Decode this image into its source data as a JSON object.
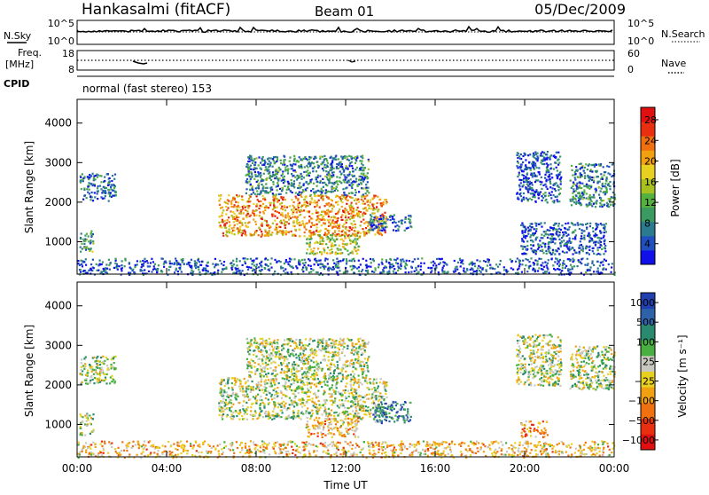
{
  "header": {
    "station": "Hankasalmi (fitACF)",
    "beam": "Beam 01",
    "date": "05/Dec/2009"
  },
  "top_panels": {
    "nsky_label": "N.Sky",
    "nsearch_label": "N.Search",
    "freq_label": "Freq.",
    "freq_unit": "[MHz]",
    "nave_label": "Nave",
    "cpid_label": "CPID",
    "cpid_value": "normal (fast stereo) 153",
    "noise_ticks_left": [
      "10^5",
      "10^0"
    ],
    "noise_ticks_right": [
      "10^5",
      "10^0"
    ],
    "freq_ticks_left": [
      "18",
      "8"
    ],
    "nave_ticks_right": [
      "60",
      "0"
    ]
  },
  "chart_data": [
    {
      "type": "heatmap",
      "xlabel": "",
      "ylabel": "Slant Range [km]",
      "xlim": [
        0,
        24
      ],
      "ylim": [
        180,
        4600
      ],
      "yticks": [
        "1000",
        "2000",
        "3000",
        "4000"
      ],
      "colorbar": {
        "label": "Power [dB]",
        "ticks": [
          "4",
          "8",
          "12",
          "16",
          "20",
          "24",
          "28"
        ],
        "colors": [
          "#1010e8",
          "#2050c0",
          "#2a7a90",
          "#3a9a60",
          "#55b040",
          "#a8c020",
          "#e8d020",
          "#f0a010",
          "#f07010",
          "#e83010",
          "#e01010"
        ]
      },
      "echo_regions": [
        {
          "t0": 0.1,
          "t1": 1.7,
          "r0": 2050,
          "r1": 2750,
          "level": 0.2
        },
        {
          "t0": 0.1,
          "t1": 0.7,
          "r0": 750,
          "r1": 1300,
          "level": 0.35
        },
        {
          "t0": 6.3,
          "t1": 13.8,
          "r0": 1150,
          "r1": 2200,
          "level": 0.7
        },
        {
          "t0": 7.5,
          "t1": 13.0,
          "r0": 2200,
          "r1": 3200,
          "level": 0.25
        },
        {
          "t0": 13.0,
          "t1": 14.9,
          "r0": 1300,
          "r1": 1700,
          "level": 0.2
        },
        {
          "t0": 10.2,
          "t1": 12.6,
          "r0": 700,
          "r1": 1200,
          "level": 0.5
        },
        {
          "t0": 19.6,
          "t1": 21.6,
          "r0": 2000,
          "r1": 3300,
          "level": 0.15
        },
        {
          "t0": 22.0,
          "t1": 24.0,
          "r0": 1900,
          "r1": 3000,
          "level": 0.25
        },
        {
          "t0": 19.8,
          "t1": 23.6,
          "r0": 700,
          "r1": 1500,
          "level": 0.15
        },
        {
          "t0": 0.0,
          "t1": 24.0,
          "r0": 180,
          "r1": 600,
          "level": 0.15
        }
      ]
    },
    {
      "type": "heatmap",
      "xlabel": "Time UT",
      "ylabel": "Slant Range [km]",
      "xlim": [
        0,
        24
      ],
      "ylim": [
        180,
        4600
      ],
      "xticks": [
        "00:00",
        "04:00",
        "08:00",
        "12:00",
        "16:00",
        "20:00",
        "00:00"
      ],
      "yticks": [
        "1000",
        "2000",
        "3000",
        "4000"
      ],
      "colorbar": {
        "label": "Velocity [m s⁻¹]",
        "ticks": [
          "1000",
          "500",
          "100",
          "25",
          "−25",
          "−100",
          "−500",
          "−1000"
        ],
        "colors": [
          "#2040b0",
          "#2e62a8",
          "#2a8a70",
          "#48b040",
          "#c8c8c0",
          "#e8d020",
          "#f0a010",
          "#f07010",
          "#e83010",
          "#e01010"
        ]
      },
      "echo_regions": [
        {
          "t0": 0.1,
          "t1": 1.7,
          "r0": 2050,
          "r1": 2750,
          "level": 0.45
        },
        {
          "t0": 0.1,
          "t1": 0.7,
          "r0": 750,
          "r1": 1300,
          "level": 0.45
        },
        {
          "t0": 6.3,
          "t1": 13.8,
          "r0": 1150,
          "r1": 2200,
          "level": 0.45
        },
        {
          "t0": 7.5,
          "t1": 13.0,
          "r0": 2200,
          "r1": 3200,
          "level": 0.45
        },
        {
          "t0": 13.2,
          "t1": 14.9,
          "r0": 1050,
          "r1": 1600,
          "level": 0.25
        },
        {
          "t0": 10.2,
          "t1": 12.6,
          "r0": 700,
          "r1": 1200,
          "level": 0.6
        },
        {
          "t0": 19.6,
          "t1": 21.6,
          "r0": 2000,
          "r1": 3300,
          "level": 0.45
        },
        {
          "t0": 22.0,
          "t1": 24.0,
          "r0": 1900,
          "r1": 3000,
          "level": 0.45
        },
        {
          "t0": 19.8,
          "t1": 21.0,
          "r0": 700,
          "r1": 1100,
          "level": 0.7
        },
        {
          "t0": 0.0,
          "t1": 24.0,
          "r0": 180,
          "r1": 600,
          "level": 0.6
        }
      ]
    }
  ]
}
